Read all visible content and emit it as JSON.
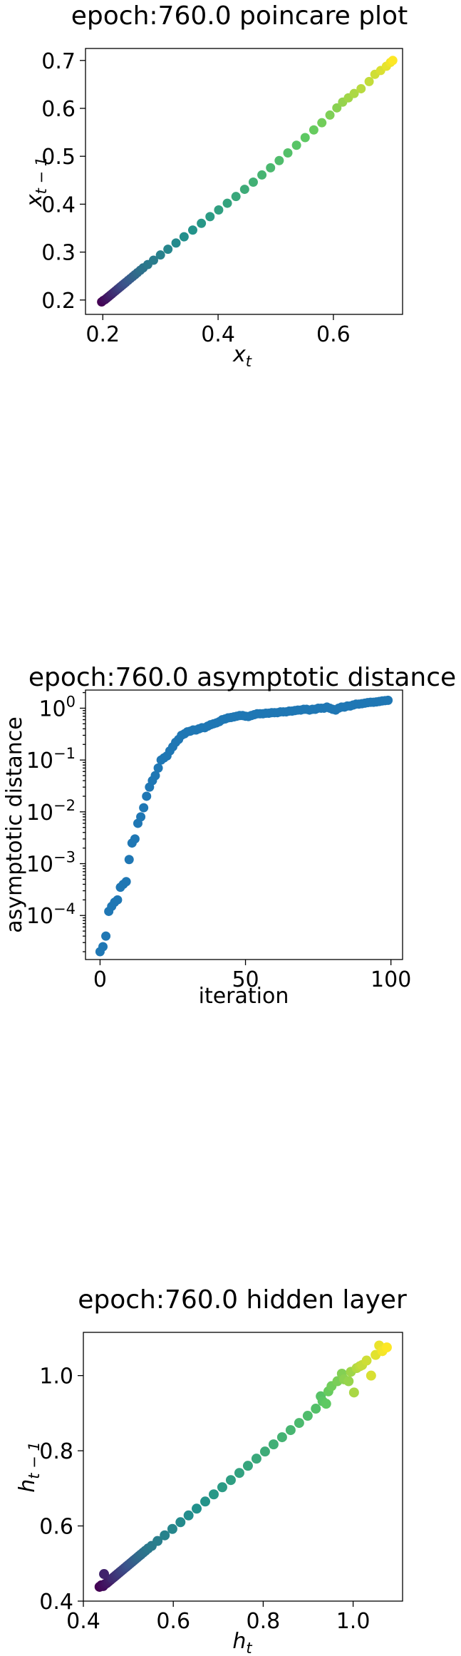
{
  "chart_data": [
    {
      "type": "scatter",
      "title": "epoch:760.0 poincare plot",
      "xlabel": "x",
      "xlabel_sub": "t",
      "ylabel": "x",
      "ylabel_sub": "t − 1",
      "xlim": [
        0.17,
        0.72
      ],
      "ylim": [
        0.17,
        0.725
      ],
      "xticks": [
        0.2,
        0.4,
        0.6
      ],
      "xtick_labels": [
        "0.2",
        "0.4",
        "0.6"
      ],
      "yticks": [
        0.2,
        0.3,
        0.4,
        0.5,
        0.6,
        0.7
      ],
      "ytick_labels": [
        "0.2",
        "0.3",
        "0.4",
        "0.5",
        "0.6",
        "0.7"
      ],
      "yscale": "linear",
      "colormap": "viridis",
      "grid": false,
      "points": [
        {
          "x": 0.198,
          "y": 0.196
        },
        {
          "x": 0.201,
          "y": 0.199
        },
        {
          "x": 0.204,
          "y": 0.201
        },
        {
          "x": 0.207,
          "y": 0.204
        },
        {
          "x": 0.21,
          "y": 0.207
        },
        {
          "x": 0.213,
          "y": 0.21
        },
        {
          "x": 0.216,
          "y": 0.213
        },
        {
          "x": 0.219,
          "y": 0.216
        },
        {
          "x": 0.222,
          "y": 0.219
        },
        {
          "x": 0.225,
          "y": 0.222
        },
        {
          "x": 0.228,
          "y": 0.225
        },
        {
          "x": 0.231,
          "y": 0.228
        },
        {
          "x": 0.234,
          "y": 0.231
        },
        {
          "x": 0.237,
          "y": 0.234
        },
        {
          "x": 0.24,
          "y": 0.237
        },
        {
          "x": 0.244,
          "y": 0.241
        },
        {
          "x": 0.248,
          "y": 0.245
        },
        {
          "x": 0.252,
          "y": 0.249
        },
        {
          "x": 0.256,
          "y": 0.253
        },
        {
          "x": 0.26,
          "y": 0.257
        },
        {
          "x": 0.265,
          "y": 0.262
        },
        {
          "x": 0.27,
          "y": 0.267
        },
        {
          "x": 0.278,
          "y": 0.274
        },
        {
          "x": 0.288,
          "y": 0.283
        },
        {
          "x": 0.3,
          "y": 0.294
        },
        {
          "x": 0.313,
          "y": 0.306
        },
        {
          "x": 0.327,
          "y": 0.319
        },
        {
          "x": 0.341,
          "y": 0.332
        },
        {
          "x": 0.356,
          "y": 0.346
        },
        {
          "x": 0.371,
          "y": 0.36
        },
        {
          "x": 0.386,
          "y": 0.374
        },
        {
          "x": 0.401,
          "y": 0.388
        },
        {
          "x": 0.416,
          "y": 0.402
        },
        {
          "x": 0.431,
          "y": 0.416
        },
        {
          "x": 0.446,
          "y": 0.431
        },
        {
          "x": 0.461,
          "y": 0.446
        },
        {
          "x": 0.476,
          "y": 0.461
        },
        {
          "x": 0.491,
          "y": 0.476
        },
        {
          "x": 0.506,
          "y": 0.491
        },
        {
          "x": 0.521,
          "y": 0.507
        },
        {
          "x": 0.536,
          "y": 0.523
        },
        {
          "x": 0.551,
          "y": 0.539
        },
        {
          "x": 0.566,
          "y": 0.555
        },
        {
          "x": 0.58,
          "y": 0.57
        },
        {
          "x": 0.594,
          "y": 0.586
        },
        {
          "x": 0.606,
          "y": 0.601
        },
        {
          "x": 0.616,
          "y": 0.613
        },
        {
          "x": 0.626,
          "y": 0.622
        },
        {
          "x": 0.636,
          "y": 0.631
        },
        {
          "x": 0.648,
          "y": 0.641
        },
        {
          "x": 0.662,
          "y": 0.656
        },
        {
          "x": 0.672,
          "y": 0.671
        },
        {
          "x": 0.682,
          "y": 0.679
        },
        {
          "x": 0.692,
          "y": 0.688
        },
        {
          "x": 0.699,
          "y": 0.696
        },
        {
          "x": 0.703,
          "y": 0.7
        }
      ]
    },
    {
      "type": "scatter",
      "title": "epoch:760.0 asymptotic distance",
      "xlabel": "iteration",
      "ylabel": "asymptotic distance",
      "xlim": [
        -5,
        104
      ],
      "ylim_log10": [
        -4.85,
        0.35
      ],
      "yscale": "log",
      "xticks": [
        0,
        50,
        100
      ],
      "xtick_labels": [
        "0",
        "50",
        "100"
      ],
      "yticks_exp": [
        -4,
        -3,
        -2,
        -1,
        0
      ],
      "ytick_base": "10",
      "color": "#1f77b4",
      "grid": false,
      "x": [
        0,
        1,
        2,
        3,
        4,
        5,
        6,
        7,
        8,
        9,
        10,
        11,
        12,
        13,
        14,
        15,
        16,
        17,
        18,
        19,
        20,
        21,
        22,
        23,
        24,
        25,
        26,
        27,
        28,
        29,
        30,
        31,
        32,
        33,
        34,
        35,
        36,
        37,
        38,
        39,
        40,
        41,
        42,
        43,
        44,
        45,
        46,
        47,
        48,
        49,
        50,
        51,
        52,
        53,
        54,
        55,
        56,
        57,
        58,
        59,
        60,
        61,
        62,
        63,
        64,
        65,
        66,
        67,
        68,
        69,
        70,
        71,
        72,
        73,
        74,
        75,
        76,
        77,
        78,
        79,
        80,
        81,
        82,
        83,
        84,
        85,
        86,
        87,
        88,
        89,
        90,
        91,
        92,
        93,
        94,
        95,
        96,
        97,
        98,
        99
      ],
      "y": [
        2e-05,
        2.5e-05,
        4e-05,
        0.00012,
        0.00015,
        0.00018,
        0.0002,
        0.00035,
        0.0004,
        0.00045,
        0.0012,
        0.0025,
        0.003,
        0.006,
        0.008,
        0.012,
        0.02,
        0.03,
        0.04,
        0.05,
        0.07,
        0.1,
        0.11,
        0.12,
        0.15,
        0.18,
        0.22,
        0.25,
        0.3,
        0.32,
        0.35,
        0.36,
        0.38,
        0.38,
        0.4,
        0.42,
        0.42,
        0.45,
        0.48,
        0.5,
        0.52,
        0.55,
        0.6,
        0.62,
        0.65,
        0.66,
        0.68,
        0.7,
        0.72,
        0.72,
        0.7,
        0.69,
        0.72,
        0.75,
        0.78,
        0.78,
        0.78,
        0.8,
        0.8,
        0.82,
        0.82,
        0.82,
        0.85,
        0.85,
        0.85,
        0.88,
        0.88,
        0.9,
        0.92,
        0.92,
        0.95,
        0.95,
        0.92,
        0.95,
        0.95,
        1.0,
        1.0,
        1.0,
        1.05,
        1.0,
        0.95,
        0.92,
        1.0,
        1.05,
        1.05,
        1.1,
        1.1,
        1.15,
        1.2,
        1.2,
        1.22,
        1.25,
        1.28,
        1.3,
        1.3,
        1.32,
        1.35,
        1.38,
        1.4,
        1.42
      ]
    },
    {
      "type": "scatter",
      "title": "epoch:760.0 hidden layer",
      "xlabel": "h",
      "xlabel_sub": "t",
      "ylabel": "h",
      "ylabel_sub": "t − 1",
      "xlim": [
        0.4,
        1.11
      ],
      "ylim": [
        0.4,
        1.115
      ],
      "xticks": [
        0.4,
        0.6,
        0.8,
        1.0
      ],
      "xtick_labels": [
        "0.4",
        "0.6",
        "0.8",
        "1.0"
      ],
      "yticks": [
        0.4,
        0.6,
        0.8,
        1.0
      ],
      "ytick_labels": [
        "0.4",
        "0.6",
        "0.8",
        "1.0"
      ],
      "yscale": "linear",
      "colormap": "viridis",
      "grid": false,
      "points": [
        {
          "x": 0.436,
          "y": 0.438
        },
        {
          "x": 0.44,
          "y": 0.442
        },
        {
          "x": 0.444,
          "y": 0.44
        },
        {
          "x": 0.448,
          "y": 0.445
        },
        {
          "x": 0.452,
          "y": 0.448
        },
        {
          "x": 0.456,
          "y": 0.452
        },
        {
          "x": 0.46,
          "y": 0.456
        },
        {
          "x": 0.446,
          "y": 0.472
        },
        {
          "x": 0.464,
          "y": 0.46
        },
        {
          "x": 0.468,
          "y": 0.464
        },
        {
          "x": 0.472,
          "y": 0.468
        },
        {
          "x": 0.476,
          "y": 0.472
        },
        {
          "x": 0.48,
          "y": 0.476
        },
        {
          "x": 0.484,
          "y": 0.48
        },
        {
          "x": 0.488,
          "y": 0.484
        },
        {
          "x": 0.492,
          "y": 0.488
        },
        {
          "x": 0.496,
          "y": 0.492
        },
        {
          "x": 0.5,
          "y": 0.496
        },
        {
          "x": 0.504,
          "y": 0.5
        },
        {
          "x": 0.508,
          "y": 0.504
        },
        {
          "x": 0.512,
          "y": 0.508
        },
        {
          "x": 0.516,
          "y": 0.512
        },
        {
          "x": 0.52,
          "y": 0.516
        },
        {
          "x": 0.524,
          "y": 0.52
        },
        {
          "x": 0.528,
          "y": 0.524
        },
        {
          "x": 0.533,
          "y": 0.529
        },
        {
          "x": 0.538,
          "y": 0.534
        },
        {
          "x": 0.544,
          "y": 0.54
        },
        {
          "x": 0.552,
          "y": 0.547
        },
        {
          "x": 0.565,
          "y": 0.56
        },
        {
          "x": 0.581,
          "y": 0.575
        },
        {
          "x": 0.598,
          "y": 0.592
        },
        {
          "x": 0.616,
          "y": 0.61
        },
        {
          "x": 0.634,
          "y": 0.628
        },
        {
          "x": 0.652,
          "y": 0.646
        },
        {
          "x": 0.671,
          "y": 0.665
        },
        {
          "x": 0.69,
          "y": 0.684
        },
        {
          "x": 0.709,
          "y": 0.703
        },
        {
          "x": 0.728,
          "y": 0.722
        },
        {
          "x": 0.747,
          "y": 0.741
        },
        {
          "x": 0.766,
          "y": 0.76
        },
        {
          "x": 0.785,
          "y": 0.779
        },
        {
          "x": 0.804,
          "y": 0.798
        },
        {
          "x": 0.823,
          "y": 0.817
        },
        {
          "x": 0.842,
          "y": 0.836
        },
        {
          "x": 0.861,
          "y": 0.855
        },
        {
          "x": 0.88,
          "y": 0.874
        },
        {
          "x": 0.899,
          "y": 0.893
        },
        {
          "x": 0.917,
          "y": 0.912
        },
        {
          "x": 0.928,
          "y": 0.945
        },
        {
          "x": 0.932,
          "y": 0.932
        },
        {
          "x": 0.94,
          "y": 0.925
        },
        {
          "x": 0.945,
          "y": 0.958
        },
        {
          "x": 0.952,
          "y": 0.972
        },
        {
          "x": 0.965,
          "y": 0.985
        },
        {
          "x": 0.975,
          "y": 1.005
        },
        {
          "x": 0.98,
          "y": 0.99
        },
        {
          "x": 0.99,
          "y": 0.985
        },
        {
          "x": 0.995,
          "y": 1.01
        },
        {
          "x": 1.002,
          "y": 0.955
        },
        {
          "x": 1.008,
          "y": 1.02
        },
        {
          "x": 1.015,
          "y": 1.025
        },
        {
          "x": 1.02,
          "y": 1.028
        },
        {
          "x": 1.03,
          "y": 1.04
        },
        {
          "x": 1.04,
          "y": 1.0
        },
        {
          "x": 1.05,
          "y": 1.055
        },
        {
          "x": 1.058,
          "y": 1.08
        },
        {
          "x": 1.065,
          "y": 1.065
        },
        {
          "x": 1.075,
          "y": 1.075
        }
      ]
    }
  ]
}
